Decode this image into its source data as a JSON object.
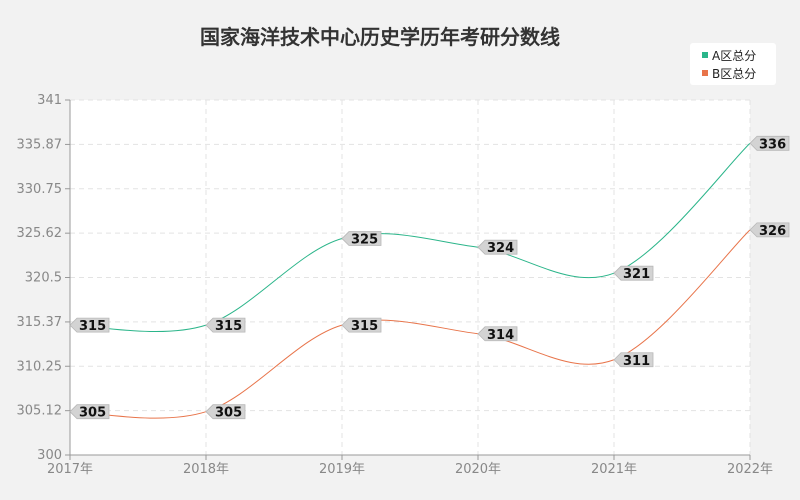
{
  "chart_data": {
    "type": "line",
    "title": "国家海洋技术中心历史学历年考研分数线",
    "categories": [
      "2017年",
      "2018年",
      "2019年",
      "2020年",
      "2021年",
      "2022年"
    ],
    "y_ticks": [
      "300",
      "305.12",
      "310.25",
      "315.37",
      "320.5",
      "325.62",
      "330.75",
      "335.87",
      "341"
    ],
    "ylim": [
      300,
      341
    ],
    "grid": true,
    "legend_position": "top-right",
    "series": [
      {
        "name": "A区总分",
        "color": "#2bb58a",
        "values": [
          315,
          315,
          325,
          324,
          321,
          336
        ],
        "labels": [
          "315",
          "315",
          "325",
          "324",
          "321",
          "336"
        ]
      },
      {
        "name": "B区总分",
        "color": "#e8744a",
        "values": [
          305,
          305,
          315,
          314,
          311,
          326
        ],
        "labels": [
          "305",
          "305",
          "315",
          "314",
          "311",
          "326"
        ]
      }
    ]
  }
}
